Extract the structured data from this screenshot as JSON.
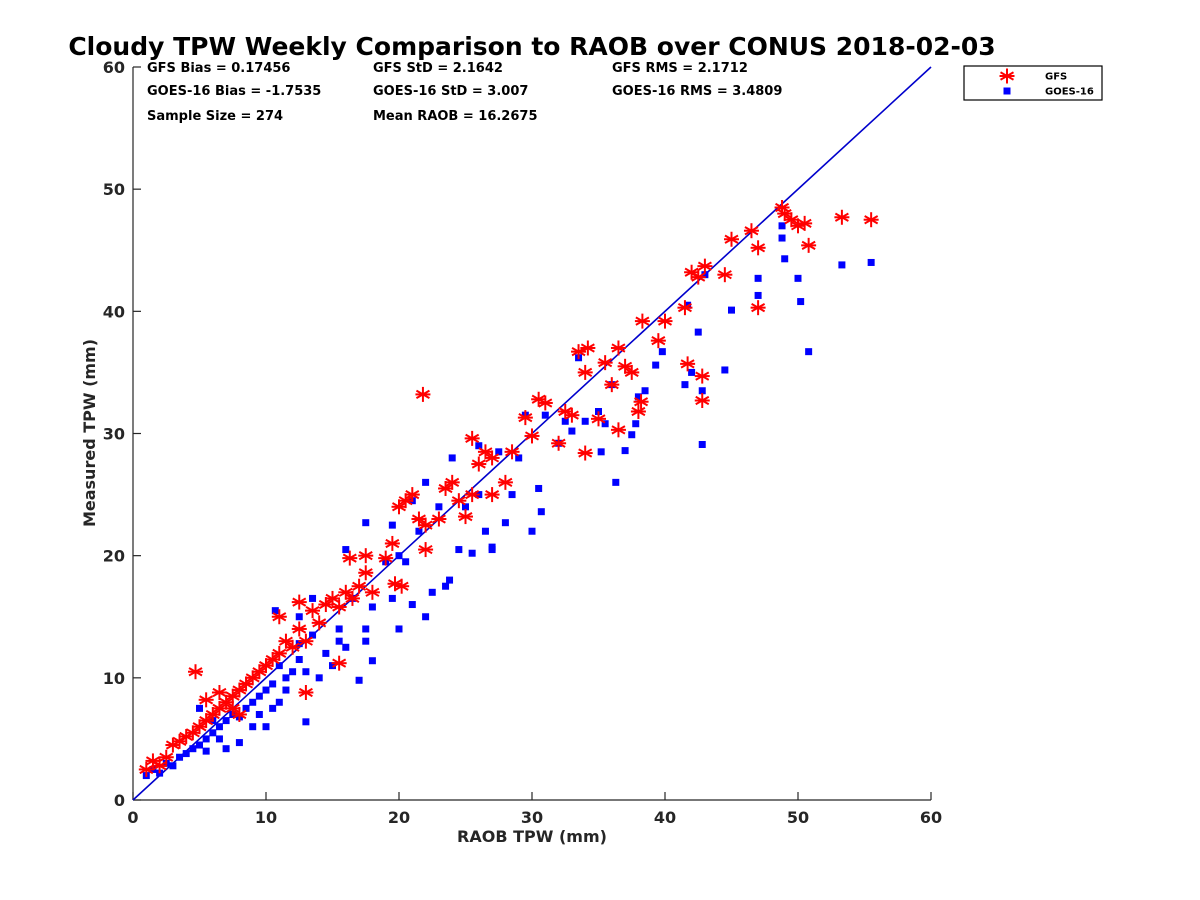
{
  "chart_data": {
    "type": "scatter",
    "title": "Cloudy TPW Weekly Comparison to RAOB over CONUS 2018-02-03",
    "xlabel": "RAOB TPW (mm)",
    "ylabel": "Measured TPW (mm)",
    "xlim": [
      0,
      60
    ],
    "ylim": [
      0,
      60
    ],
    "xticks": [
      "0",
      "10",
      "20",
      "30",
      "40",
      "50",
      "60"
    ],
    "yticks": [
      "0",
      "10",
      "20",
      "30",
      "40",
      "50",
      "60"
    ],
    "grid": false,
    "legend_position": "top-right outside",
    "reference_line": {
      "x": [
        0,
        60
      ],
      "y": [
        0,
        60
      ],
      "color": "#0000cc"
    },
    "stats": [
      [
        "GFS Bias = 0.17456",
        "GFS StD = 2.1642",
        "GFS RMS = 2.1712"
      ],
      [
        "GOES-16 Bias = -1.7535",
        "GOES-16 StD = 3.007",
        "GOES-16 RMS = 3.4809"
      ],
      [
        "Sample Size = 274",
        "Mean RAOB = 16.2675",
        ""
      ]
    ],
    "series": [
      {
        "name": "GFS",
        "marker": "asterisk",
        "color": "#ff0000",
        "points": [
          [
            1,
            2.5
          ],
          [
            1.5,
            3.2
          ],
          [
            2,
            2.8
          ],
          [
            2.5,
            3.5
          ],
          [
            3,
            4.5
          ],
          [
            3.5,
            4.8
          ],
          [
            4,
            5.2
          ],
          [
            4.5,
            5.5
          ],
          [
            5,
            6
          ],
          [
            5.5,
            6.5
          ],
          [
            6,
            7
          ],
          [
            6.5,
            7.5
          ],
          [
            7,
            8
          ],
          [
            7.5,
            8.5
          ],
          [
            8,
            9
          ],
          [
            8.5,
            9.5
          ],
          [
            9,
            10
          ],
          [
            9.5,
            10.5
          ],
          [
            10,
            11
          ],
          [
            10.5,
            11.5
          ],
          [
            4.7,
            10.5
          ],
          [
            5.5,
            8.2
          ],
          [
            6.5,
            8.8
          ],
          [
            7.5,
            7.5
          ],
          [
            8,
            7
          ],
          [
            11,
            12
          ],
          [
            11.5,
            13
          ],
          [
            12,
            12.5
          ],
          [
            12.5,
            14
          ],
          [
            13,
            13
          ],
          [
            11,
            15
          ],
          [
            12.5,
            16.2
          ],
          [
            13.5,
            15.5
          ],
          [
            14,
            14.5
          ],
          [
            14.5,
            16
          ],
          [
            15,
            16.5
          ],
          [
            15.5,
            15.8
          ],
          [
            16,
            17
          ],
          [
            16.5,
            16.5
          ],
          [
            17,
            17.5
          ],
          [
            15.5,
            11.2
          ],
          [
            13,
            8.8
          ],
          [
            16.3,
            19.8
          ],
          [
            17.5,
            18.6
          ],
          [
            17.5,
            20
          ],
          [
            18,
            17
          ],
          [
            19,
            19.8
          ],
          [
            19.5,
            21
          ],
          [
            19.7,
            17.7
          ],
          [
            20.2,
            17.5
          ],
          [
            20,
            24
          ],
          [
            20.5,
            24.5
          ],
          [
            21,
            25
          ],
          [
            21.5,
            23
          ],
          [
            22,
            20.5
          ],
          [
            22,
            22.5
          ],
          [
            21.8,
            33.2
          ],
          [
            23,
            23
          ],
          [
            23.5,
            25.5
          ],
          [
            24,
            26
          ],
          [
            24.5,
            24.5
          ],
          [
            25,
            23.2
          ],
          [
            25.5,
            25
          ],
          [
            25.5,
            29.6
          ],
          [
            26,
            27.5
          ],
          [
            26.5,
            28.5
          ],
          [
            27,
            25
          ],
          [
            27,
            28
          ],
          [
            28,
            26
          ],
          [
            28.5,
            28.5
          ],
          [
            29.5,
            31.3
          ],
          [
            30,
            29.8
          ],
          [
            30.5,
            32.8
          ],
          [
            31,
            32.5
          ],
          [
            32,
            29.2
          ],
          [
            32.5,
            31.8
          ],
          [
            33,
            31.5
          ],
          [
            33.5,
            36.7
          ],
          [
            34,
            35
          ],
          [
            34.2,
            37
          ],
          [
            34,
            28.4
          ],
          [
            35,
            31.2
          ],
          [
            35.5,
            35.8
          ],
          [
            36,
            34
          ],
          [
            36.5,
            30.3
          ],
          [
            36.5,
            37
          ],
          [
            37,
            35.5
          ],
          [
            37.5,
            35
          ],
          [
            38,
            31.8
          ],
          [
            38.2,
            32.6
          ],
          [
            38.3,
            39.2
          ],
          [
            39.5,
            37.6
          ],
          [
            40,
            39.2
          ],
          [
            41.5,
            40.3
          ],
          [
            41.7,
            35.7
          ],
          [
            42,
            43.2
          ],
          [
            42.5,
            42.8
          ],
          [
            42.8,
            34.7
          ],
          [
            42.8,
            32.7
          ],
          [
            43,
            43.7
          ],
          [
            44.5,
            43
          ],
          [
            45,
            45.9
          ],
          [
            46.5,
            46.6
          ],
          [
            47,
            45.2
          ],
          [
            47,
            40.3
          ],
          [
            48.8,
            48.5
          ],
          [
            49,
            48
          ],
          [
            49.5,
            47.5
          ],
          [
            50,
            47
          ],
          [
            50.5,
            47.2
          ],
          [
            50.8,
            45.4
          ],
          [
            53.3,
            47.7
          ],
          [
            55.5,
            47.5
          ]
        ]
      },
      {
        "name": "GOES-16",
        "marker": "square",
        "color": "#0000ff",
        "points": [
          [
            1,
            2
          ],
          [
            1.5,
            2.5
          ],
          [
            2,
            2.2
          ],
          [
            2.5,
            3
          ],
          [
            3,
            2.8
          ],
          [
            3.5,
            3.5
          ],
          [
            4,
            3.8
          ],
          [
            4.5,
            4.2
          ],
          [
            5,
            4.5
          ],
          [
            5.5,
            5
          ],
          [
            6,
            5.5
          ],
          [
            6.5,
            6
          ],
          [
            7,
            6.5
          ],
          [
            7.5,
            7
          ],
          [
            8,
            6.8
          ],
          [
            8.5,
            7.5
          ],
          [
            9,
            8
          ],
          [
            9.5,
            8.5
          ],
          [
            10,
            9
          ],
          [
            10.5,
            9.5
          ],
          [
            5,
            7.5
          ],
          [
            5.5,
            4
          ],
          [
            6,
            6.5
          ],
          [
            6.5,
            5
          ],
          [
            7,
            4.2
          ],
          [
            8,
            4.7
          ],
          [
            9,
            6
          ],
          [
            9.5,
            7
          ],
          [
            10,
            6
          ],
          [
            10.5,
            7.5
          ],
          [
            11,
            8
          ],
          [
            11.5,
            9
          ],
          [
            11,
            11
          ],
          [
            11.5,
            10
          ],
          [
            12,
            10.5
          ],
          [
            12.5,
            11.5
          ],
          [
            12.5,
            12.8
          ],
          [
            13,
            6.4
          ],
          [
            13,
            10.5
          ],
          [
            13.5,
            13.5
          ],
          [
            10.7,
            15.5
          ],
          [
            12.5,
            15
          ],
          [
            13.5,
            16.5
          ],
          [
            14,
            10
          ],
          [
            14.5,
            12
          ],
          [
            15,
            11
          ],
          [
            15.5,
            13
          ],
          [
            15.5,
            14
          ],
          [
            16,
            20.5
          ],
          [
            16,
            12.5
          ],
          [
            16.5,
            16.5
          ],
          [
            17,
            9.8
          ],
          [
            17.5,
            14
          ],
          [
            17.5,
            13
          ],
          [
            17.5,
            22.7
          ],
          [
            18,
            11.4
          ],
          [
            18,
            15.8
          ],
          [
            19,
            19.5
          ],
          [
            19.5,
            16.5
          ],
          [
            19.5,
            22.5
          ],
          [
            20,
            14
          ],
          [
            20,
            20
          ],
          [
            20.5,
            19.5
          ],
          [
            21,
            16
          ],
          [
            21,
            24.5
          ],
          [
            21.5,
            22
          ],
          [
            22,
            15
          ],
          [
            22,
            26
          ],
          [
            22.5,
            17
          ],
          [
            23,
            24
          ],
          [
            23.5,
            17.5
          ],
          [
            23.8,
            18
          ],
          [
            24,
            28
          ],
          [
            24.5,
            20.5
          ],
          [
            25,
            24
          ],
          [
            25.5,
            20.2
          ],
          [
            26,
            25
          ],
          [
            26,
            29
          ],
          [
            26.5,
            22
          ],
          [
            27,
            20.5
          ],
          [
            27,
            20.7
          ],
          [
            27.5,
            28.5
          ],
          [
            28,
            22.7
          ],
          [
            28.5,
            25
          ],
          [
            29,
            28
          ],
          [
            29.5,
            31.5
          ],
          [
            30,
            22
          ],
          [
            30.5,
            25.5
          ],
          [
            30.7,
            23.6
          ],
          [
            31,
            31.5
          ],
          [
            32,
            29.2
          ],
          [
            32.5,
            31
          ],
          [
            33,
            30.2
          ],
          [
            33.5,
            36.2
          ],
          [
            34,
            31
          ],
          [
            35,
            31.8
          ],
          [
            35.2,
            28.5
          ],
          [
            35.5,
            30.8
          ],
          [
            36,
            34
          ],
          [
            36.3,
            26
          ],
          [
            37,
            28.6
          ],
          [
            37.5,
            29.9
          ],
          [
            37.8,
            30.8
          ],
          [
            38,
            33
          ],
          [
            38.5,
            33.5
          ],
          [
            39.3,
            35.6
          ],
          [
            39.8,
            36.7
          ],
          [
            41.5,
            34
          ],
          [
            41.7,
            40.5
          ],
          [
            42,
            35
          ],
          [
            42.5,
            38.3
          ],
          [
            42.8,
            33.5
          ],
          [
            42.8,
            29.1
          ],
          [
            43,
            43
          ],
          [
            44.5,
            35.2
          ],
          [
            45,
            40.1
          ],
          [
            47,
            42.7
          ],
          [
            47,
            41.3
          ],
          [
            48.8,
            47
          ],
          [
            48.8,
            46
          ],
          [
            49,
            44.3
          ],
          [
            50,
            42.7
          ],
          [
            50.2,
            40.8
          ],
          [
            50.8,
            36.7
          ],
          [
            53.3,
            43.8
          ],
          [
            55.5,
            44
          ]
        ]
      }
    ]
  }
}
